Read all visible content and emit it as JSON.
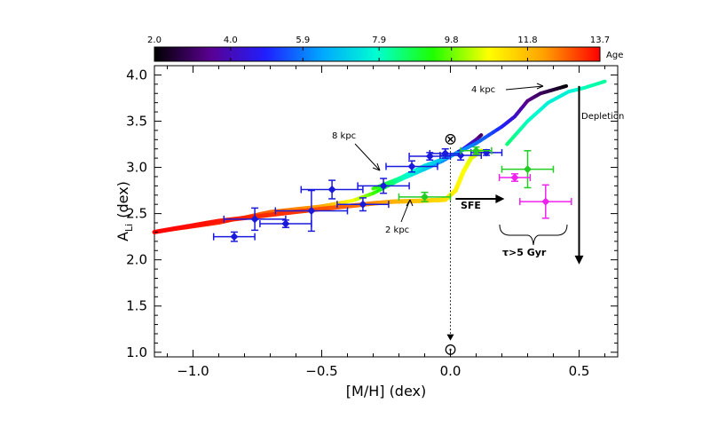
{
  "chart_data": {
    "type": "scatter",
    "title": "",
    "xlabel": "[M/H] (dex)",
    "ylabel": "A",
    "ylabel_sub": "Li",
    "ylabel_unit": "(dex)",
    "xlim": [
      -1.15,
      0.65
    ],
    "ylim": [
      0.95,
      4.1
    ],
    "xticks": [
      -1.0,
      -0.5,
      0.0,
      0.5
    ],
    "xtick_labels": [
      "−1.0",
      "−0.5",
      "0.0",
      "0.5"
    ],
    "yticks": [
      1.0,
      1.5,
      2.0,
      2.5,
      3.0,
      3.5,
      4.0
    ],
    "ytick_labels": [
      "1.0",
      "1.5",
      "2.0",
      "2.5",
      "3.0",
      "3.5",
      "4.0"
    ],
    "grid": false,
    "colorbar": {
      "label": "Age",
      "range": [
        2.0,
        13.7
      ],
      "tick_values": [
        2.0,
        4.0,
        5.9,
        7.9,
        9.8,
        11.8,
        13.7
      ],
      "tick_labels": [
        "2.0",
        "4.0",
        "5.9",
        "7.9",
        "9.8",
        "11.8",
        "13.7"
      ],
      "colormap": [
        "#000000",
        "#5a0090",
        "#1f1fff",
        "#00a6ff",
        "#00ffd0",
        "#1eff00",
        "#ffff00",
        "#ffa000",
        "#ff0000"
      ]
    },
    "tracks": [
      {
        "label": "8 kpc",
        "width": 4,
        "points": [
          [
            -1.15,
            2.3,
            13.7
          ],
          [
            -0.9,
            2.4,
            13.3
          ],
          [
            -0.7,
            2.52,
            12.8
          ],
          [
            -0.5,
            2.58,
            12.2
          ],
          [
            -0.38,
            2.64,
            10.8
          ],
          [
            -0.3,
            2.72,
            9.6
          ],
          [
            -0.2,
            2.86,
            8.2
          ],
          [
            -0.1,
            2.98,
            7.1
          ],
          [
            -0.03,
            3.07,
            6.2
          ],
          [
            0.05,
            3.2,
            5.1
          ],
          [
            0.1,
            3.3,
            4.0
          ],
          [
            0.12,
            3.35,
            3.0
          ]
        ]
      },
      {
        "label": "4 kpc",
        "width": 4,
        "points": [
          [
            -0.3,
            2.77,
            9.6
          ],
          [
            -0.2,
            2.88,
            8.2
          ],
          [
            -0.1,
            3.02,
            7.4
          ],
          [
            0.0,
            3.12,
            6.6
          ],
          [
            0.1,
            3.26,
            5.9
          ],
          [
            0.2,
            3.44,
            5.0
          ],
          [
            0.25,
            3.55,
            4.3
          ],
          [
            0.3,
            3.72,
            3.4
          ],
          [
            0.35,
            3.8,
            3.0
          ],
          [
            0.4,
            3.84,
            2.6
          ],
          [
            0.45,
            3.88,
            2.1
          ]
        ]
      },
      {
        "label": "",
        "width": 4,
        "points": [
          [
            0.22,
            3.25,
            8.5
          ],
          [
            0.3,
            3.5,
            8.0
          ],
          [
            0.38,
            3.7,
            7.6
          ],
          [
            0.46,
            3.82,
            7.6
          ],
          [
            0.52,
            3.86,
            8.0
          ],
          [
            0.6,
            3.93,
            8.2
          ]
        ]
      },
      {
        "label": "2 kpc",
        "width": 5,
        "points": [
          [
            -1.15,
            2.3,
            13.7
          ],
          [
            -0.9,
            2.42,
            13.5
          ],
          [
            -0.6,
            2.52,
            13.2
          ],
          [
            -0.4,
            2.58,
            12.8
          ],
          [
            -0.3,
            2.61,
            12.5
          ],
          [
            -0.22,
            2.63,
            12.0
          ],
          [
            -0.1,
            2.64,
            11.6
          ],
          [
            -0.02,
            2.65,
            11.3
          ],
          [
            0.02,
            2.75,
            11.0
          ],
          [
            0.05,
            2.95,
            10.8
          ],
          [
            0.08,
            3.1,
            10.6
          ],
          [
            0.12,
            3.18,
            10.5
          ]
        ]
      }
    ],
    "series": [
      {
        "name": "",
        "color": "#1a1adc",
        "points": [
          {
            "x": -0.84,
            "y": 2.25,
            "xerr": 0.08,
            "yerr": 0.05
          },
          {
            "x": -0.64,
            "y": 2.39,
            "xerr": 0.1,
            "yerr": 0.04
          },
          {
            "x": -0.76,
            "y": 2.44,
            "xerr": 0.12,
            "yerr": 0.12
          },
          {
            "x": -0.54,
            "y": 2.53,
            "xerr": 0.14,
            "yerr": 0.22
          },
          {
            "x": -0.46,
            "y": 2.76,
            "xerr": 0.12,
            "yerr": 0.1
          },
          {
            "x": -0.34,
            "y": 2.6,
            "xerr": 0.1,
            "yerr": 0.07
          },
          {
            "x": -0.26,
            "y": 2.8,
            "xerr": 0.1,
            "yerr": 0.08
          },
          {
            "x": -0.15,
            "y": 3.01,
            "xerr": 0.1,
            "yerr": 0.06
          },
          {
            "x": -0.08,
            "y": 3.12,
            "xerr": 0.08,
            "yerr": 0.04
          },
          {
            "x": -0.02,
            "y": 3.15,
            "xerr": 0.06,
            "yerr": 0.05
          },
          {
            "x": 0.04,
            "y": 3.13,
            "xerr": 0.08,
            "yerr": 0.05
          },
          {
            "x": 0.14,
            "y": 3.16,
            "xerr": 0.06,
            "yerr": 0.03
          }
        ]
      },
      {
        "name": "",
        "color": "#22cc22",
        "points": [
          {
            "x": -0.1,
            "y": 2.68,
            "xerr": 0.1,
            "yerr": 0.05
          },
          {
            "x": 0.1,
            "y": 3.18,
            "xerr": 0.06,
            "yerr": 0.04
          },
          {
            "x": 0.3,
            "y": 2.98,
            "xerr": 0.1,
            "yerr": 0.2
          }
        ]
      },
      {
        "name": "",
        "color": "#ee22ee",
        "points": [
          {
            "x": 0.25,
            "y": 2.89,
            "xerr": 0.06,
            "yerr": 0.04
          },
          {
            "x": 0.37,
            "y": 2.63,
            "xerr": 0.1,
            "yerr": 0.18
          }
        ]
      }
    ],
    "annotations": {
      "label_4kpc": "4 kpc",
      "label_8kpc": "8 kpc",
      "label_2kpc": "2 kpc",
      "sfe": "SFE",
      "depletion": "Depletion",
      "age_brace": "τ>5 Gyr",
      "meteoritic_symbol": "⊗",
      "solar_symbol": "⊙",
      "meteoritic_point": {
        "x": 0.0,
        "y": 3.31
      },
      "solar_point": {
        "x": 0.0,
        "y": 1.03
      },
      "depletion_arrow": {
        "x": 0.5,
        "from": 3.88,
        "to": 1.95
      },
      "sfe_arrow": {
        "y": 2.66,
        "from": 0.02,
        "to": 0.21
      }
    }
  }
}
